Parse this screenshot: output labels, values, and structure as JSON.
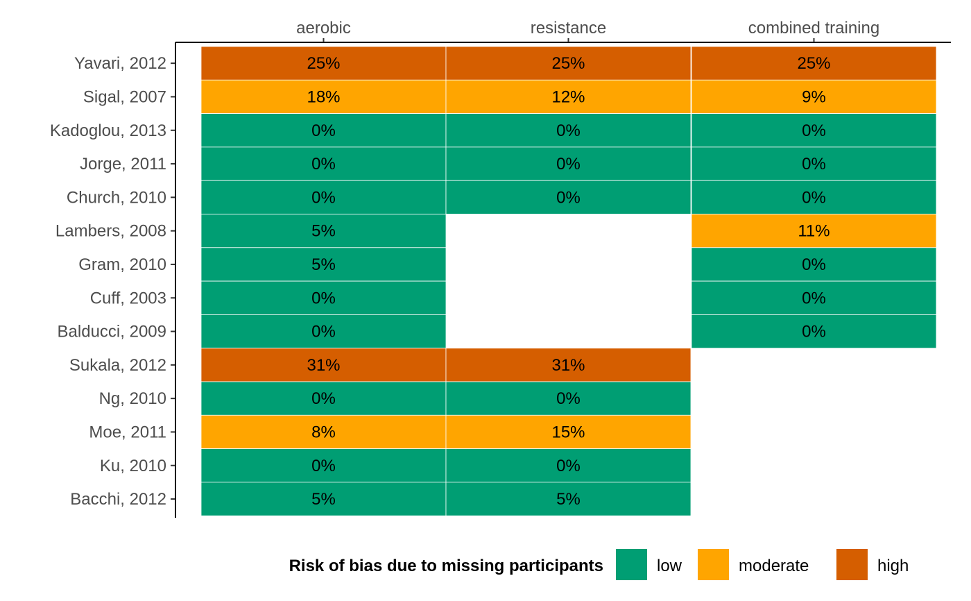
{
  "chart_data": {
    "type": "heatmap",
    "columns": [
      "aerobic",
      "resistance",
      "combined training"
    ],
    "rows": [
      "Yavari, 2012",
      "Sigal, 2007",
      "Kadoglou, 2013",
      "Jorge, 2011",
      "Church, 2010",
      "Lambers, 2008",
      "Gram, 2010",
      "Cuff, 2003",
      "Balducci, 2009",
      "Sukala, 2012",
      "Ng, 2010",
      "Moe, 2011",
      "Ku, 2010",
      "Bacchi, 2012"
    ],
    "cells": [
      {
        "row": "Yavari, 2012",
        "col": "aerobic",
        "value": 25,
        "label": "25%",
        "risk": "high"
      },
      {
        "row": "Yavari, 2012",
        "col": "resistance",
        "value": 25,
        "label": "25%",
        "risk": "high"
      },
      {
        "row": "Yavari, 2012",
        "col": "combined training",
        "value": 25,
        "label": "25%",
        "risk": "high"
      },
      {
        "row": "Sigal, 2007",
        "col": "aerobic",
        "value": 18,
        "label": "18%",
        "risk": "moderate"
      },
      {
        "row": "Sigal, 2007",
        "col": "resistance",
        "value": 12,
        "label": "12%",
        "risk": "moderate"
      },
      {
        "row": "Sigal, 2007",
        "col": "combined training",
        "value": 9,
        "label": "9%",
        "risk": "moderate"
      },
      {
        "row": "Kadoglou, 2013",
        "col": "aerobic",
        "value": 0,
        "label": "0%",
        "risk": "low"
      },
      {
        "row": "Kadoglou, 2013",
        "col": "resistance",
        "value": 0,
        "label": "0%",
        "risk": "low"
      },
      {
        "row": "Kadoglou, 2013",
        "col": "combined training",
        "value": 0,
        "label": "0%",
        "risk": "low"
      },
      {
        "row": "Jorge, 2011",
        "col": "aerobic",
        "value": 0,
        "label": "0%",
        "risk": "low"
      },
      {
        "row": "Jorge, 2011",
        "col": "resistance",
        "value": 0,
        "label": "0%",
        "risk": "low"
      },
      {
        "row": "Jorge, 2011",
        "col": "combined training",
        "value": 0,
        "label": "0%",
        "risk": "low"
      },
      {
        "row": "Church, 2010",
        "col": "aerobic",
        "value": 0,
        "label": "0%",
        "risk": "low"
      },
      {
        "row": "Church, 2010",
        "col": "resistance",
        "value": 0,
        "label": "0%",
        "risk": "low"
      },
      {
        "row": "Church, 2010",
        "col": "combined training",
        "value": 0,
        "label": "0%",
        "risk": "low"
      },
      {
        "row": "Lambers, 2008",
        "col": "aerobic",
        "value": 5,
        "label": "5%",
        "risk": "low"
      },
      {
        "row": "Lambers, 2008",
        "col": "combined training",
        "value": 11,
        "label": "11%",
        "risk": "moderate"
      },
      {
        "row": "Gram, 2010",
        "col": "aerobic",
        "value": 5,
        "label": "5%",
        "risk": "low"
      },
      {
        "row": "Gram, 2010",
        "col": "combined training",
        "value": 0,
        "label": "0%",
        "risk": "low"
      },
      {
        "row": "Cuff, 2003",
        "col": "aerobic",
        "value": 0,
        "label": "0%",
        "risk": "low"
      },
      {
        "row": "Cuff, 2003",
        "col": "combined training",
        "value": 0,
        "label": "0%",
        "risk": "low"
      },
      {
        "row": "Balducci, 2009",
        "col": "aerobic",
        "value": 0,
        "label": "0%",
        "risk": "low"
      },
      {
        "row": "Balducci, 2009",
        "col": "combined training",
        "value": 0,
        "label": "0%",
        "risk": "low"
      },
      {
        "row": "Sukala, 2012",
        "col": "aerobic",
        "value": 31,
        "label": "31%",
        "risk": "high"
      },
      {
        "row": "Sukala, 2012",
        "col": "resistance",
        "value": 31,
        "label": "31%",
        "risk": "high"
      },
      {
        "row": "Ng, 2010",
        "col": "aerobic",
        "value": 0,
        "label": "0%",
        "risk": "low"
      },
      {
        "row": "Ng, 2010",
        "col": "resistance",
        "value": 0,
        "label": "0%",
        "risk": "low"
      },
      {
        "row": "Moe, 2011",
        "col": "aerobic",
        "value": 8,
        "label": "8%",
        "risk": "moderate"
      },
      {
        "row": "Moe, 2011",
        "col": "resistance",
        "value": 15,
        "label": "15%",
        "risk": "moderate"
      },
      {
        "row": "Ku, 2010",
        "col": "aerobic",
        "value": 0,
        "label": "0%",
        "risk": "low"
      },
      {
        "row": "Ku, 2010",
        "col": "resistance",
        "value": 0,
        "label": "0%",
        "risk": "low"
      },
      {
        "row": "Bacchi, 2012",
        "col": "aerobic",
        "value": 5,
        "label": "5%",
        "risk": "low"
      },
      {
        "row": "Bacchi, 2012",
        "col": "resistance",
        "value": 5,
        "label": "5%",
        "risk": "low"
      }
    ],
    "legend": {
      "title": "Risk of bias due to missing participants",
      "position": "bottom",
      "items": [
        {
          "key": "low",
          "label": "low",
          "color": "#009E73"
        },
        {
          "key": "moderate",
          "label": "moderate",
          "color": "#FFA500"
        },
        {
          "key": "high",
          "label": "high",
          "color": "#D55E00"
        }
      ]
    },
    "x_axis_position": "top",
    "grid": false
  }
}
